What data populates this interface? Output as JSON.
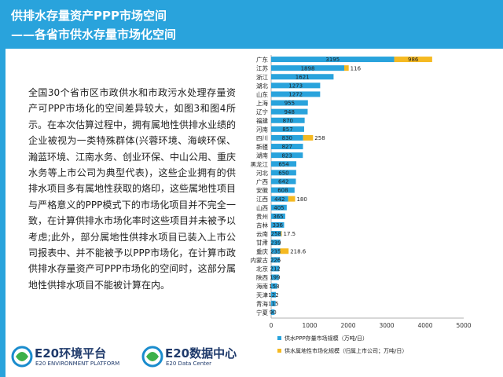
{
  "header": {
    "title_line1": "供排水存量资产PPP市场空间",
    "title_line2": "——各省市供水存量市场化空间"
  },
  "body_text": "全国30个省市区市政供水和市政污水处理存量资产可PPP市场化的空间差异较大，如图3和图4所示。在本次估算过程中，拥有属地性供排水业绩的企业被视为一类特殊群体(兴蓉环境、海峡环保、瀚蓝环境、江南水务、创业环保、中山公用、重庆水务等上市公司为典型代表)，这些企业拥有的供排水项目多有属地性获取的烙印，这些属地性项目与严格意义的PPP模式下的市场化项目并不完全一致，在计算供排水市场化率时这些项目并未被予以考虑;此外，部分属地性供排水项目已装入上市公司报表中、并不能被予以PPP市场化，在计算市政供排水存量资产可PPP市场化的空间时，这部分属地性供排水项目不能被计算在内。",
  "logos": {
    "e20_platform_name": "E20环境平台",
    "e20_platform_sub": "E20 ENVIRONMENT PLATFORM",
    "e20_data_name": "E20数据中心",
    "e20_data_sub": "E20 Data Center"
  },
  "colors": {
    "header_bg": "#29a3dc",
    "series1": "#29a3dc",
    "series2": "#f5b921"
  },
  "chart_data": {
    "type": "bar",
    "orientation": "horizontal",
    "stacked": true,
    "categories": [
      "广东",
      "江苏",
      "浙江",
      "湖北",
      "山东",
      "上海",
      "辽宁",
      "福建",
      "河南",
      "四川",
      "新疆",
      "湖南",
      "黑龙江",
      "河北",
      "广西",
      "安徽",
      "江西",
      "山西",
      "贵州",
      "吉林",
      "云南",
      "甘肃",
      "重庆",
      "内蒙古",
      "北京",
      "陕西",
      "海南",
      "天津",
      "青海",
      "宁夏"
    ],
    "series": [
      {
        "name": "供水PPP存量市场规模（万吨/日）",
        "values": [
          3195,
          1898,
          1621,
          1273,
          1272,
          955,
          948,
          870,
          857,
          830,
          827,
          823,
          654,
          650,
          642,
          608,
          442,
          405,
          365,
          336,
          258,
          239,
          235,
          226,
          212,
          199,
          158,
          122,
          115,
          90
        ],
        "labels": [
          "3195",
          "1898",
          "1621",
          "1273",
          "1272",
          "955",
          "948",
          "870",
          "857",
          "830",
          "827",
          "823",
          "654",
          "650",
          "642",
          "608",
          "442",
          "405",
          "365",
          "336",
          "258",
          "239",
          "235",
          "226",
          "212",
          "199",
          "158",
          "122",
          "115",
          "90"
        ]
      },
      {
        "name": "供水属地性市场化规模（归属上市公司；万吨/日）",
        "values": [
          986,
          116,
          0,
          0,
          0,
          0,
          0,
          0,
          0,
          258,
          0,
          0,
          0,
          0,
          0,
          0,
          180,
          0,
          0,
          0,
          17.5,
          0,
          218.6,
          0,
          0,
          0,
          0,
          0,
          0,
          0
        ],
        "labels": [
          "986",
          "116",
          "",
          "",
          "",
          "",
          "",
          "",
          "",
          "258",
          "",
          "",
          "",
          "",
          "",
          "",
          "180",
          "",
          "",
          "",
          "17.5",
          "",
          "218.6",
          "",
          "",
          "",
          "",
          "",
          "",
          ""
        ]
      }
    ],
    "xlim": [
      0,
      5000
    ],
    "xticks": [
      "0",
      "1000",
      "2000",
      "3000",
      "4000",
      "5000"
    ],
    "legend_position": "bottom",
    "grid": false
  }
}
